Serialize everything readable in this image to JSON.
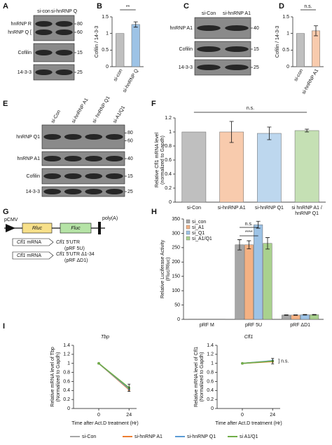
{
  "panel_labels": [
    "A",
    "B",
    "C",
    "D",
    "E",
    "F",
    "G",
    "H",
    "I"
  ],
  "blots": [
    {
      "lanes": [
        "si-con",
        "si-hnRNP Q"
      ],
      "rows": [
        {
          "labels": [
            "hnRNP R",
            "hnRNP Q ["
          ],
          "markers": [
            80,
            60
          ]
        },
        {
          "labels": [
            "Cofilin"
          ],
          "markers": [
            15
          ]
        },
        {
          "labels": [
            "14-3-3"
          ],
          "markers": [
            25
          ]
        }
      ]
    },
    {
      "lanes": [
        "si-Con",
        "si-hnRNP A1"
      ],
      "rows": [
        {
          "labels": [
            "hnRNP A1"
          ],
          "markers": [
            40
          ]
        },
        {
          "labels": [
            "Cofilin"
          ],
          "markers": [
            15
          ]
        },
        {
          "labels": [
            "14-3-3"
          ],
          "markers": [
            25
          ]
        }
      ]
    },
    {
      "lanes": [
        "si-Con",
        "si-hnRNP A1",
        "si- hnRNP Q1",
        "si-A1/Q1"
      ],
      "rows": [
        {
          "labels": [
            "hnRNP Q1"
          ],
          "markers": [
            80,
            60
          ]
        },
        {
          "labels": [
            "hnRNP A1"
          ],
          "markers": [
            40
          ]
        },
        {
          "labels": [
            "Cofilin"
          ],
          "markers": [
            15
          ]
        },
        {
          "labels": [
            "14-3-3"
          ],
          "markers": [
            25
          ]
        }
      ]
    }
  ],
  "construct": {
    "promoter": "pCMV",
    "genes": [
      "Rluc",
      "Fluc"
    ],
    "polyA": "poly(A)",
    "inserts": [
      {
        "gene": "Cfl1",
        "rest": " mRNA",
        "utr": "Cfl1",
        "utr_rest": " 5'UTR",
        "name": "(pRF 5U)"
      },
      {
        "gene": "Cfl1",
        "rest": " mRNA",
        "utr": "Cfl1",
        "utr_rest": " 5'UTR Δ1-34",
        "name": "(pRF ΔD1)"
      }
    ]
  },
  "chart_data": [
    {
      "type": "bar",
      "ylabel": "Cofilin / 14-3-3",
      "categories": [
        "si-con",
        "si-hnRNP Q"
      ],
      "values": [
        1,
        1.27
      ],
      "errors": [
        null,
        0.08
      ],
      "colors": [
        "#bfbfbf",
        "#9dc3e6"
      ],
      "ylim": [
        0,
        1.5
      ],
      "yticks": [
        0,
        0.5,
        1,
        1.5
      ],
      "annotations": [
        "**"
      ]
    },
    {
      "type": "bar",
      "ylabel": "Cofilin / 14-3-3",
      "categories": [
        "si-con",
        "si-hnRNP A1"
      ],
      "values": [
        1,
        1.08
      ],
      "errors": [
        null,
        0.15
      ],
      "colors": [
        "#bfbfbf",
        "#f8cbad"
      ],
      "ylim": [
        0,
        1.5
      ],
      "yticks": [
        0,
        0.5,
        1,
        1.5
      ],
      "annotations": [
        "n.s."
      ]
    },
    {
      "type": "bar",
      "ylabel": [
        "Relative Cfl1 mRNA level",
        "(normalized to Gapdh)"
      ],
      "categories": [
        "si-Con",
        "si-hnRNP A1",
        "si-hnRNP Q1",
        "si hnRNP A1 / hnRNP Q1"
      ],
      "values": [
        1,
        1,
        0.98,
        1.02
      ],
      "errors": [
        null,
        0.15,
        0.09,
        0.02
      ],
      "colors": [
        "#bfbfbf",
        "#f8cbad",
        "#bdd7ee",
        "#c5e0b4"
      ],
      "ylim": [
        0,
        1.2
      ],
      "yticks": [
        0,
        0.2,
        0.4,
        0.6,
        0.8,
        1,
        1.2
      ],
      "annotations": [
        "n.s."
      ]
    },
    {
      "type": "bar",
      "ylabel": [
        "Relative Luciferase Activity",
        "(Fluc/Rluc)"
      ],
      "categories": [
        "pRF M",
        "pRF 5U",
        "pRF ΔD1"
      ],
      "series": [
        {
          "name": "si_con",
          "color": "#a6a6a6",
          "values": [
            1,
            260,
            15
          ],
          "errors": [
            null,
            18,
            1
          ]
        },
        {
          "name": "si_A1",
          "color": "#f4b183",
          "values": [
            1,
            260,
            15
          ],
          "errors": [
            null,
            14,
            1
          ]
        },
        {
          "name": "si_Q1",
          "color": "#9dc3e6",
          "values": [
            1,
            330,
            16
          ],
          "errors": [
            null,
            12,
            1
          ]
        },
        {
          "name": "si_A1/Q1",
          "color": "#a9d18e",
          "values": [
            1,
            265,
            16
          ],
          "errors": [
            null,
            20,
            1
          ]
        }
      ],
      "ylim": [
        0,
        350
      ],
      "yticks": [
        0,
        50,
        100,
        150,
        200,
        250,
        300,
        350
      ],
      "legend": "top-left",
      "annotations": [
        "n.s.",
        "****"
      ]
    },
    {
      "type": "line",
      "title": "Tbp",
      "ylabel": [
        "Relative mRNA level of Tbp",
        "(Normalized to Gapdh)"
      ],
      "xlabel": "Time after Act.D treatment (Hr)",
      "x": [
        0,
        24
      ],
      "series": [
        {
          "name": "si-Con",
          "color": "#a6a6a6",
          "values": [
            1,
            0.45
          ]
        },
        {
          "name": "si-hnRNP A1",
          "color": "#ed7d31",
          "values": [
            1,
            0.42
          ]
        },
        {
          "name": "si-hnRNP Q1",
          "color": "#5b9bd5",
          "values": [
            1,
            0.44
          ]
        },
        {
          "name": "si A1/Q1",
          "color": "#70ad47",
          "values": [
            1,
            0.46
          ],
          "errors": [
            null,
            0.08
          ]
        }
      ],
      "xlim": [
        -20,
        30
      ],
      "xticks": [
        0,
        24
      ],
      "ylim": [
        0,
        1.4
      ],
      "yticks": [
        0,
        0.2,
        0.4,
        0.6,
        0.8,
        1,
        1.2,
        1.4
      ],
      "legend": "bottom"
    },
    {
      "type": "line",
      "title": "Cfl1",
      "ylabel": [
        "Relative mRNA level of Cfl1",
        "(Normalized to Gapdh)"
      ],
      "xlabel": "Time after Act.D treatment (Hr)",
      "x": [
        0,
        24
      ],
      "series": [
        {
          "color": "#a6a6a6",
          "values": [
            1,
            1.05
          ]
        },
        {
          "color": "#ed7d31",
          "values": [
            1,
            1.04
          ]
        },
        {
          "color": "#5b9bd5",
          "values": [
            1,
            1.06
          ]
        },
        {
          "color": "#70ad47",
          "values": [
            1,
            1.05
          ],
          "errors": [
            null,
            0.06
          ]
        }
      ],
      "xlim": [
        -20,
        30
      ],
      "xticks": [
        0,
        24
      ],
      "ylim": [
        0,
        1.4
      ],
      "yticks": [
        0,
        0.2,
        0.4,
        0.6,
        0.8,
        1,
        1.2,
        1.4
      ],
      "annotations": [
        "] n.s."
      ]
    }
  ]
}
